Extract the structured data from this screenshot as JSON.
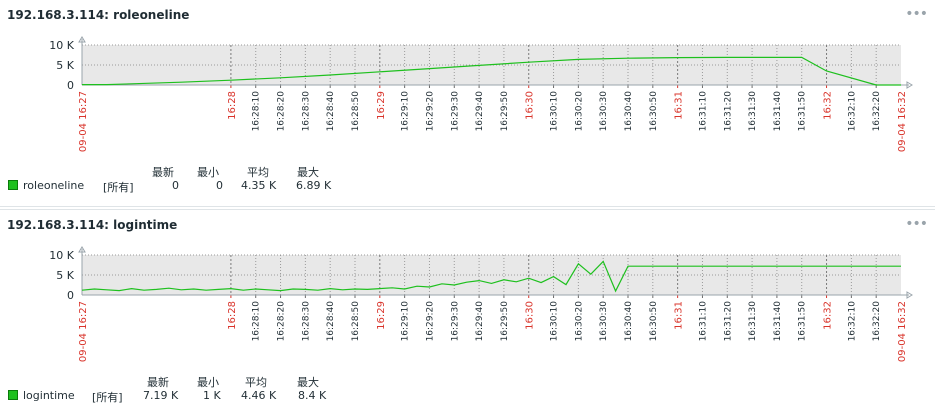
{
  "theme": {
    "series_color": "#1ec01e",
    "plot_bg": "#e8e8e8",
    "accent_red": "#d9342b",
    "grid": "#9a9a9a"
  },
  "widgets": [
    {
      "title": "192.168.3.114: roleoneline",
      "menu_icon": "dots-menu-icon",
      "legend": {
        "headers": [
          "最新",
          "最小",
          "平均",
          "最大"
        ],
        "item": "roleoneline",
        "scope": "[所有]",
        "values": [
          "0",
          "0",
          "4.35 K",
          "6.89 K"
        ]
      }
    },
    {
      "title": "192.168.3.114: logintime",
      "menu_icon": "dots-menu-icon",
      "legend": {
        "headers": [
          "最新",
          "最小",
          "平均",
          "最大"
        ],
        "item": "logintime",
        "scope": "[所有]",
        "values": [
          "7.19 K",
          "1 K",
          "4.46 K",
          "8.4 K"
        ]
      }
    }
  ],
  "chart_data": [
    {
      "type": "line",
      "series": [
        {
          "name": "roleoneline",
          "x": [
            "16:27:00",
            "16:27:10",
            "16:27:20",
            "16:27:40",
            "16:28:00",
            "16:28:20",
            "16:28:40",
            "16:29:00",
            "16:29:20",
            "16:29:40",
            "16:30:00",
            "16:30:20",
            "16:30:40",
            "16:31:00",
            "16:31:20",
            "16:31:40",
            "16:31:50",
            "16:32:00",
            "16:32:20",
            "16:32:30"
          ],
          "values": [
            100,
            100,
            300,
            700,
            1200,
            1800,
            2500,
            3300,
            4100,
            4900,
            5700,
            6400,
            6700,
            6850,
            6890,
            6890,
            6890,
            3500,
            0,
            0
          ]
        }
      ],
      "x_axis": {
        "start_label": "09-04 16:27",
        "end_label": "09-04 16:32",
        "minute_labels": [
          "16:28",
          "16:29",
          "16:30",
          "16:31",
          "16:32"
        ],
        "second_labels": [
          "16:28:10",
          "16:28:20",
          "16:28:30",
          "16:28:40",
          "16:28:50",
          "16:29:10",
          "16:29:20",
          "16:29:30",
          "16:29:40",
          "16:29:50",
          "16:30:10",
          "16:30:20",
          "16:30:30",
          "16:30:40",
          "16:30:50",
          "16:31:10",
          "16:31:20",
          "16:31:30",
          "16:31:40",
          "16:31:50",
          "16:32:10",
          "16:32:20"
        ]
      },
      "y_ticks": [
        "0",
        "5 K",
        "10 K"
      ],
      "ylim": [
        0,
        10000
      ],
      "grid": true
    },
    {
      "type": "line",
      "series": [
        {
          "name": "logintime",
          "x": [
            "16:27:00",
            "16:27:05",
            "16:27:10",
            "16:27:15",
            "16:27:20",
            "16:27:25",
            "16:27:30",
            "16:27:35",
            "16:27:40",
            "16:27:45",
            "16:27:50",
            "16:27:55",
            "16:28:00",
            "16:28:05",
            "16:28:10",
            "16:28:15",
            "16:28:20",
            "16:28:25",
            "16:28:30",
            "16:28:35",
            "16:28:40",
            "16:28:45",
            "16:28:50",
            "16:28:55",
            "16:29:00",
            "16:29:05",
            "16:29:10",
            "16:29:15",
            "16:29:20",
            "16:29:25",
            "16:29:30",
            "16:29:35",
            "16:29:40",
            "16:29:45",
            "16:29:50",
            "16:29:55",
            "16:30:00",
            "16:30:05",
            "16:30:10",
            "16:30:15",
            "16:30:20",
            "16:30:25",
            "16:30:30",
            "16:30:35",
            "16:30:40",
            "16:31:00",
            "16:31:20",
            "16:31:40",
            "16:32:00",
            "16:32:20",
            "16:32:30"
          ],
          "values": [
            1200,
            1500,
            1300,
            1100,
            1600,
            1200,
            1400,
            1700,
            1300,
            1500,
            1200,
            1400,
            1600,
            1200,
            1500,
            1300,
            1100,
            1500,
            1400,
            1200,
            1600,
            1300,
            1500,
            1400,
            1600,
            1800,
            1500,
            2200,
            2000,
            2800,
            2500,
            3200,
            3600,
            2900,
            3800,
            3300,
            4200,
            3100,
            4600,
            2600,
            7800,
            5200,
            8400,
            1000,
            7190,
            7190,
            7190,
            7190,
            7190,
            7190,
            7190
          ]
        }
      ],
      "x_axis": {
        "start_label": "09-04 16:27",
        "end_label": "09-04 16:32",
        "minute_labels": [
          "16:28",
          "16:29",
          "16:30",
          "16:31",
          "16:32"
        ],
        "second_labels": [
          "16:28:10",
          "16:28:20",
          "16:28:30",
          "16:28:40",
          "16:28:50",
          "16:29:10",
          "16:29:20",
          "16:29:30",
          "16:29:40",
          "16:29:50",
          "16:30:10",
          "16:30:20",
          "16:30:30",
          "16:30:40",
          "16:30:50",
          "16:31:10",
          "16:31:20",
          "16:31:30",
          "16:31:40",
          "16:31:50",
          "16:32:10",
          "16:32:20"
        ]
      },
      "y_ticks": [
        "0",
        "5 K",
        "10 K"
      ],
      "ylim": [
        0,
        10000
      ],
      "grid": true
    }
  ]
}
